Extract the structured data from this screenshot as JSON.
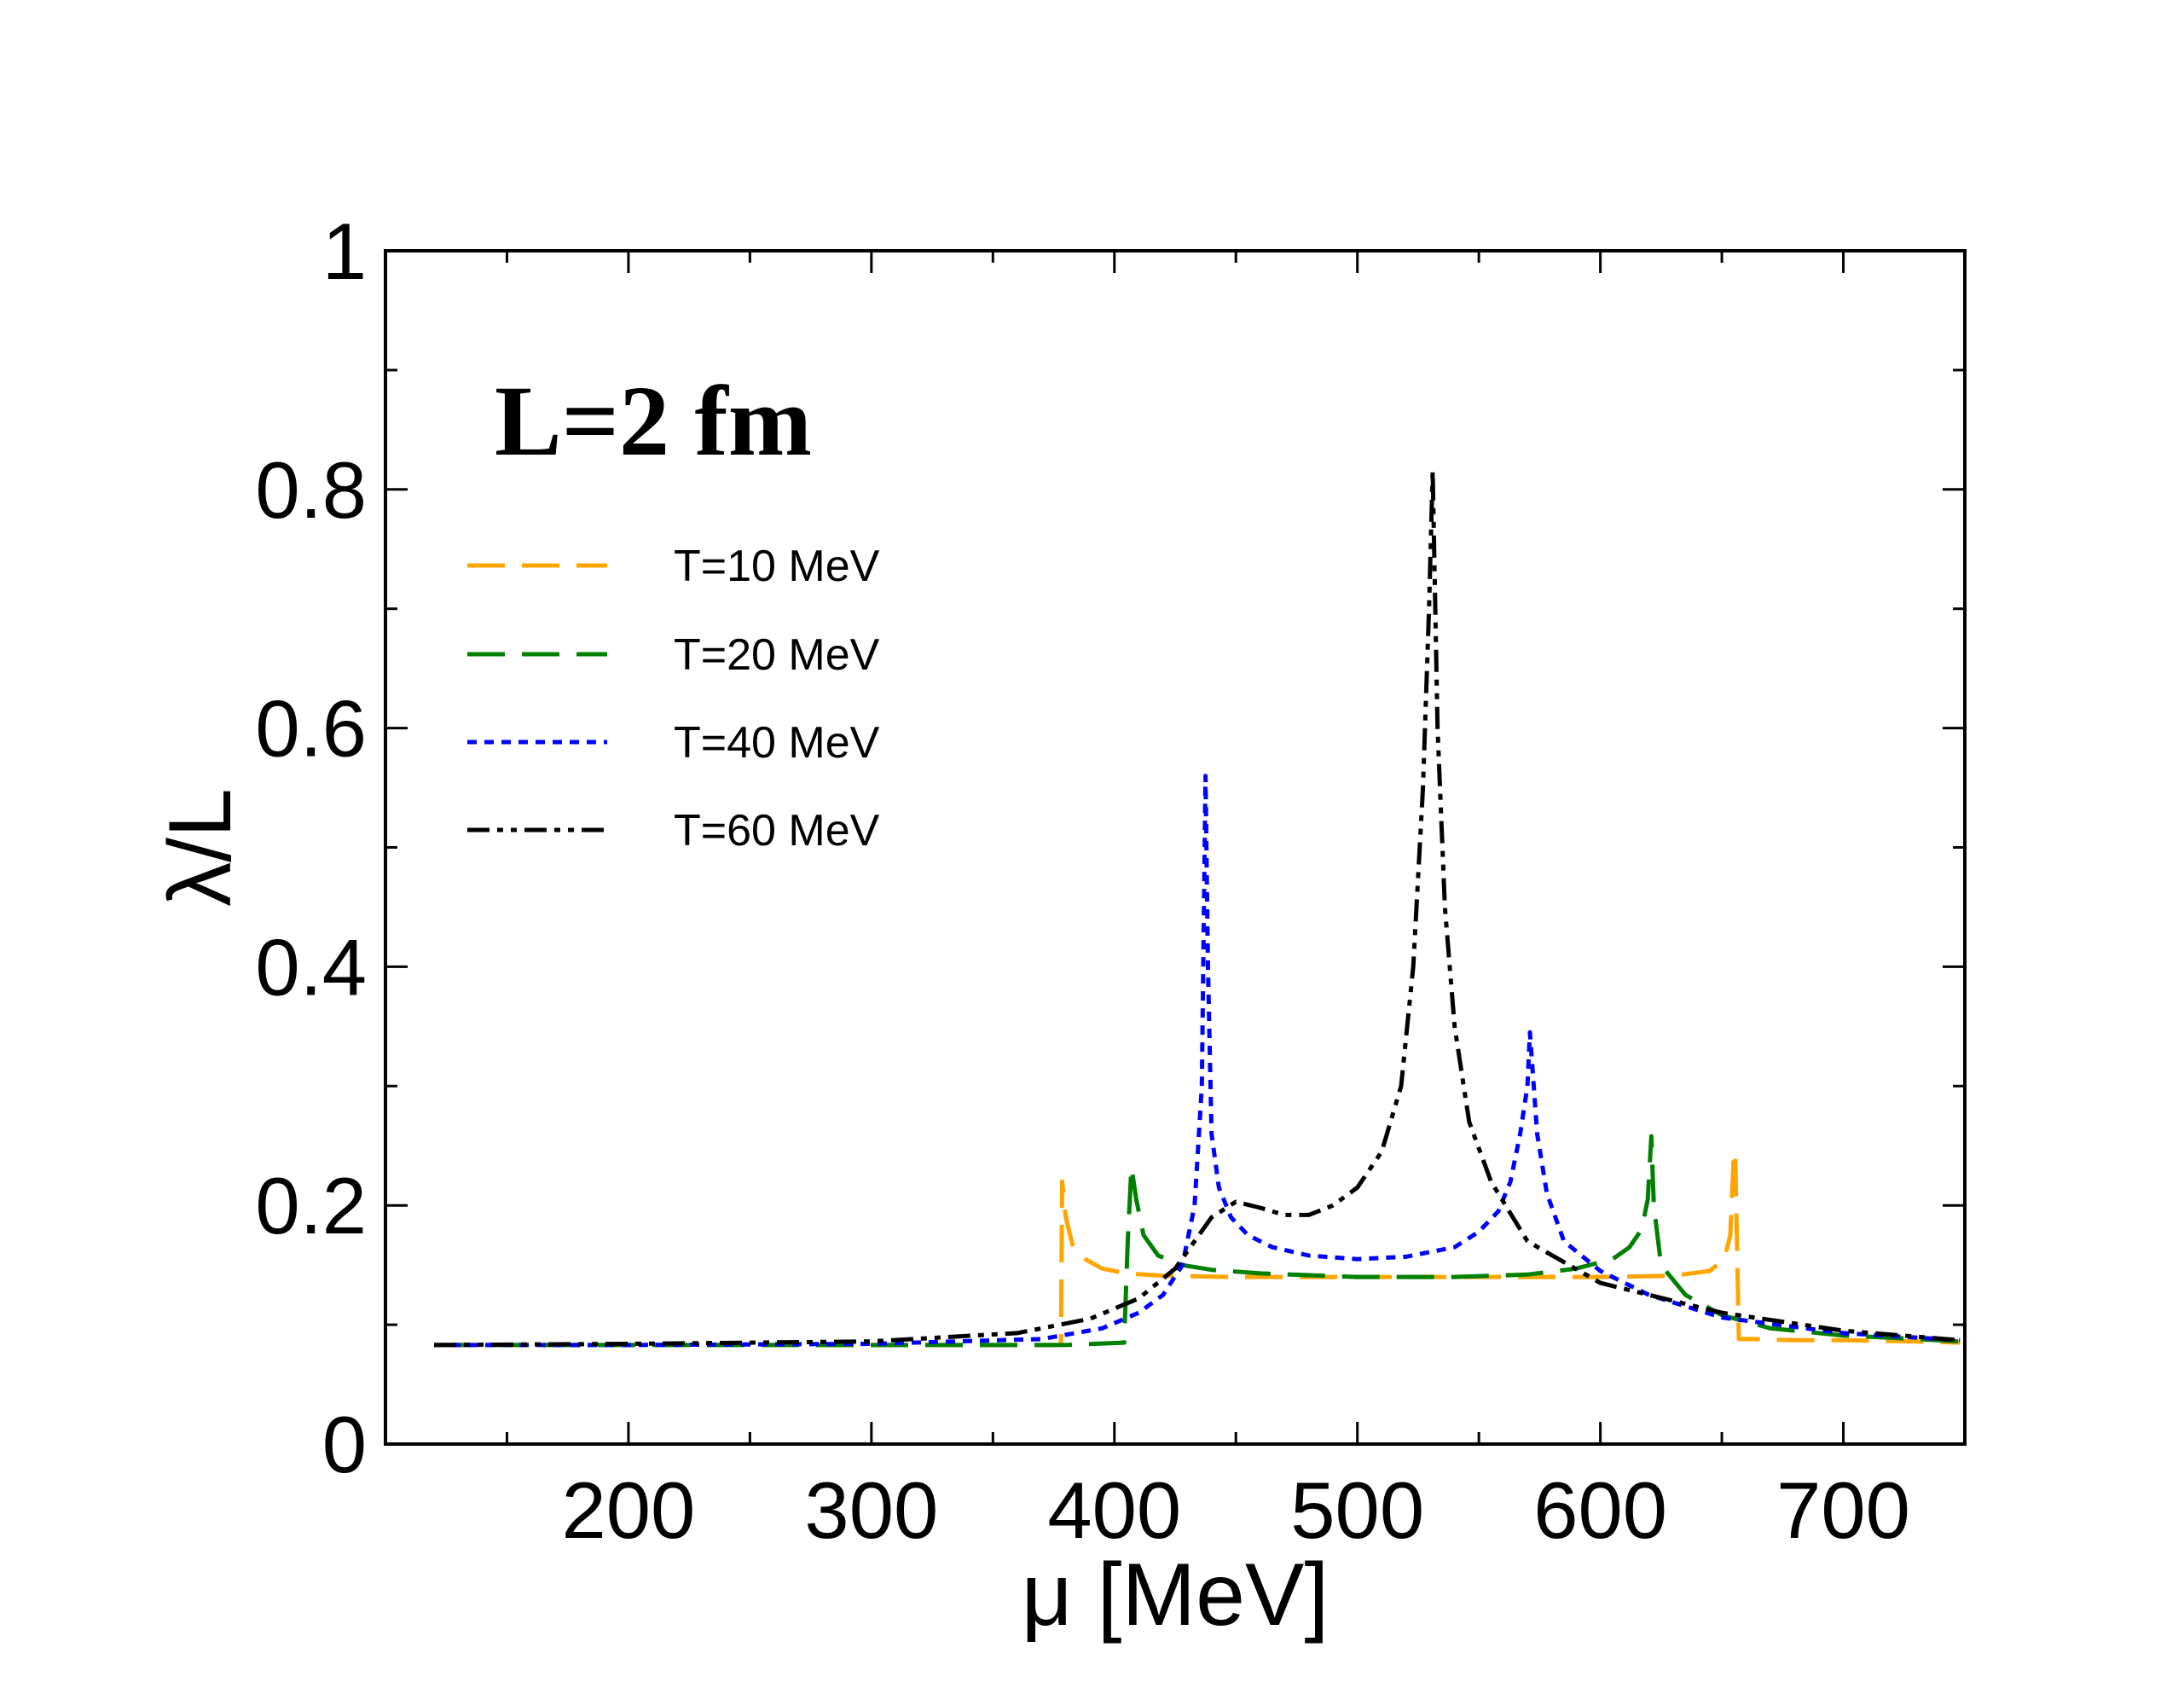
{
  "chart_data": {
    "type": "line",
    "title": "",
    "annotation": "L=2 fm",
    "xlabel": "μ [MeV]",
    "ylabel": "λ/L",
    "xlim": [
      100,
      750
    ],
    "ylim": [
      0,
      1
    ],
    "x_ticks": [
      200,
      300,
      400,
      500,
      600,
      700
    ],
    "x_tick_labels": [
      "200",
      "300",
      "400",
      "500",
      "600",
      "700"
    ],
    "y_ticks": [
      0,
      0.2,
      0.4,
      0.6,
      0.8,
      1
    ],
    "y_tick_labels": [
      "0",
      "0.2",
      "0.4",
      "0.6",
      "0.8",
      "1"
    ],
    "grid": false,
    "legend_position": "upper-left",
    "series": [
      {
        "name": "T=10 MeV",
        "color": "#ffa500",
        "dash": "long-dash",
        "x": [
          120,
          200,
          300,
          360,
          378,
          378.5,
          380,
          383,
          388,
          395,
          405,
          420,
          450,
          500,
          550,
          600,
          630,
          645,
          651,
          653.5,
          655,
          655.5,
          657,
          663,
          680,
          700,
          730,
          748
        ],
        "y": [
          0.083,
          0.083,
          0.083,
          0.083,
          0.083,
          0.22,
          0.19,
          0.165,
          0.155,
          0.147,
          0.143,
          0.141,
          0.14,
          0.14,
          0.14,
          0.14,
          0.141,
          0.145,
          0.155,
          0.175,
          0.245,
          0.245,
          0.088,
          0.088,
          0.087,
          0.087,
          0.086,
          0.085
        ]
      },
      {
        "name": "T=20 MeV",
        "color": "#008000",
        "dash": "long-dash",
        "x": [
          120,
          200,
          300,
          380,
          404,
          405.5,
          407,
          409,
          412,
          418,
          428,
          440,
          460,
          500,
          540,
          570,
          590,
          605,
          612,
          617,
          619.5,
          621,
          622,
          625,
          635,
          650,
          670,
          700,
          730,
          748
        ],
        "y": [
          0.083,
          0.083,
          0.083,
          0.083,
          0.085,
          0.17,
          0.232,
          0.205,
          0.175,
          0.158,
          0.15,
          0.146,
          0.143,
          0.14,
          0.14,
          0.142,
          0.147,
          0.155,
          0.165,
          0.18,
          0.205,
          0.258,
          0.2,
          0.15,
          0.125,
          0.108,
          0.097,
          0.091,
          0.088,
          0.086
        ]
      },
      {
        "name": "T=40 MeV",
        "color": "#0000ff",
        "dash": "dotted",
        "x": [
          120,
          200,
          300,
          370,
          395,
          410,
          420,
          428,
          433,
          436,
          437.5,
          438.5,
          440,
          443,
          448,
          455,
          465,
          480,
          500,
          520,
          540,
          550,
          558,
          563,
          567,
          570,
          571,
          574,
          578,
          585,
          600,
          620,
          650,
          700,
          748
        ],
        "y": [
          0.083,
          0.083,
          0.084,
          0.088,
          0.097,
          0.11,
          0.125,
          0.15,
          0.2,
          0.3,
          0.56,
          0.4,
          0.26,
          0.215,
          0.19,
          0.175,
          0.165,
          0.158,
          0.155,
          0.157,
          0.165,
          0.178,
          0.195,
          0.22,
          0.26,
          0.3,
          0.345,
          0.26,
          0.21,
          0.17,
          0.145,
          0.125,
          0.106,
          0.093,
          0.087
        ]
      },
      {
        "name": "T=60 MeV",
        "color": "#000000",
        "dash": "dash-dot-dot",
        "x": [
          120,
          200,
          300,
          360,
          390,
          410,
          425,
          440,
          450,
          460,
          470,
          480,
          490,
          500,
          510,
          518,
          523,
          527,
          529.5,
          531,
          533,
          536,
          540,
          546,
          555,
          570,
          600,
          650,
          700,
          748
        ],
        "y": [
          0.083,
          0.084,
          0.086,
          0.093,
          0.105,
          0.122,
          0.147,
          0.19,
          0.203,
          0.198,
          0.192,
          0.192,
          0.2,
          0.215,
          0.245,
          0.3,
          0.4,
          0.55,
          0.7,
          0.815,
          0.6,
          0.45,
          0.35,
          0.27,
          0.22,
          0.17,
          0.135,
          0.11,
          0.095,
          0.087
        ]
      }
    ]
  }
}
